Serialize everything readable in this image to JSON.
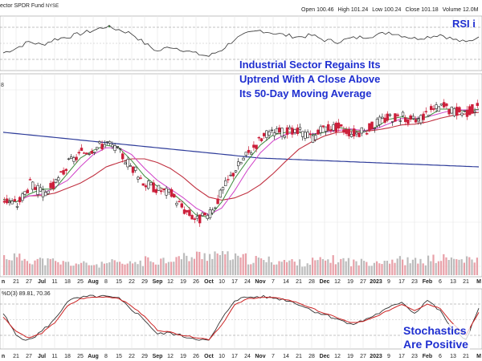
{
  "header": {
    "title": "ector SPDR Fund",
    "exchange": "NYSE",
    "ohlcv": [
      {
        "label": "Open",
        "value": "100.46"
      },
      {
        "label": "High",
        "value": "101.24"
      },
      {
        "label": "Low",
        "value": "100.24"
      },
      {
        "label": "Close",
        "value": "101.18"
      },
      {
        "label": "Volume",
        "value": "12.0M"
      }
    ]
  },
  "annotations": {
    "rsi": "RSI i",
    "main_line1": "Industrial Sector Regains Its",
    "main_line2": "Uptrend With A Close Above",
    "main_line3": "Its 50-Day Moving Average",
    "stoch_line1": "Stochastics",
    "stoch_line2": "Are Positive"
  },
  "stoch_label": "%D(3) 89.81, 70.36",
  "price_pane_label": "8",
  "date_labels": [
    "n",
    "21",
    "27",
    "Jul",
    "11",
    "18",
    "25",
    "Aug",
    "8",
    "15",
    "22",
    "29",
    "Sep",
    "12",
    "19",
    "26",
    "Oct",
    "10",
    "17",
    "24",
    "Nov",
    "7",
    "14",
    "21",
    "28",
    "Dec",
    "12",
    "19",
    "27",
    "2023",
    "9",
    "17",
    "23",
    "Feb",
    "6",
    "13",
    "21",
    "M"
  ],
  "colors": {
    "up": "#2a2a2a",
    "down": "#cc1f3a",
    "ma_fast": "#3c8a3c",
    "ma_mid": "#d040c8",
    "ma_50": "#c03040",
    "ma_200": "#2e3c9a",
    "rsi_line": "#333333",
    "rsi_over": "#4a9a4a",
    "rsi_under": "#cc3344",
    "stoch_k": "#333333",
    "stoch_d": "#cc2222",
    "annotation": "#1f2fd0"
  },
  "chart_data": [
    {
      "type": "line",
      "panel": "RSI",
      "x": [
        "Jun 14",
        "Jun 21",
        "Jun 27",
        "Jul 5",
        "Jul 11",
        "Jul 18",
        "Jul 25",
        "Aug 1",
        "Aug 8",
        "Aug 15",
        "Aug 22",
        "Aug 29",
        "Sep 6",
        "Sep 12",
        "Sep 19",
        "Sep 26",
        "Oct 3",
        "Oct 10",
        "Oct 17",
        "Oct 24",
        "Oct 31",
        "Nov 7",
        "Nov 14",
        "Nov 21",
        "Nov 28",
        "Dec 5",
        "Dec 12",
        "Dec 19",
        "Dec 27",
        "Jan 3",
        "Jan 9",
        "Jan 17",
        "Jan 23",
        "Jan 30",
        "Feb 6",
        "Feb 13",
        "Feb 21",
        "Feb 27"
      ],
      "values": [
        38,
        44,
        52,
        48,
        55,
        58,
        62,
        66,
        71,
        67,
        62,
        50,
        40,
        46,
        42,
        37,
        34,
        42,
        55,
        62,
        66,
        63,
        60,
        58,
        60,
        54,
        52,
        56,
        58,
        60,
        64,
        60,
        56,
        58,
        61,
        55,
        51,
        58
      ],
      "levels": [
        30,
        70
      ]
    },
    {
      "type": "candlestick",
      "panel": "price",
      "x": [
        "Jun 14",
        "Jun 21",
        "Jun 27",
        "Jul 5",
        "Jul 11",
        "Jul 18",
        "Jul 25",
        "Aug 1",
        "Aug 8",
        "Aug 15",
        "Aug 22",
        "Aug 29",
        "Sep 6",
        "Sep 12",
        "Sep 19",
        "Sep 26",
        "Oct 3",
        "Oct 10",
        "Oct 17",
        "Oct 24",
        "Oct 31",
        "Nov 7",
        "Nov 14",
        "Nov 21",
        "Nov 28",
        "Dec 5",
        "Dec 12",
        "Dec 19",
        "Dec 27",
        "Jan 3",
        "Jan 9",
        "Jan 17",
        "Jan 23",
        "Jan 30",
        "Feb 6",
        "Feb 13",
        "Feb 21",
        "Feb 27"
      ],
      "close": [
        82,
        81,
        85,
        83,
        85,
        89,
        91,
        92,
        93,
        91,
        88,
        85,
        84,
        83,
        80,
        78,
        79,
        84,
        88,
        91,
        94,
        95,
        95,
        95,
        94,
        96,
        96,
        95,
        95,
        97,
        98,
        98,
        97,
        99,
        100,
        99,
        99,
        100
      ],
      "moving_averages": [
        "fast",
        "mid",
        "50-day",
        "200-day"
      ]
    },
    {
      "type": "bar",
      "panel": "volume",
      "x": [
        "Jun 14",
        "Jun 21",
        "Jun 27",
        "Jul 5",
        "Jul 11",
        "Jul 18",
        "Jul 25",
        "Aug 1",
        "Aug 8",
        "Aug 15",
        "Aug 22",
        "Aug 29",
        "Sep 6",
        "Sep 12",
        "Sep 19",
        "Sep 26",
        "Oct 3",
        "Oct 10",
        "Oct 17",
        "Oct 24",
        "Oct 31",
        "Nov 7",
        "Nov 14",
        "Nov 21",
        "Nov 28",
        "Dec 5",
        "Dec 12",
        "Dec 19",
        "Dec 27",
        "Jan 3",
        "Jan 9",
        "Jan 17",
        "Jan 23",
        "Jan 30",
        "Feb 6",
        "Feb 13",
        "Feb 21",
        "Feb 27"
      ],
      "values": [
        60,
        55,
        50,
        45,
        40,
        38,
        36,
        34,
        40,
        36,
        42,
        48,
        50,
        56,
        58,
        64,
        70,
        62,
        55,
        50,
        48,
        46,
        44,
        40,
        46,
        50,
        48,
        42,
        44,
        48,
        50,
        46,
        44,
        52,
        54,
        50,
        48,
        44
      ]
    },
    {
      "type": "line",
      "panel": "stochastics",
      "x": [
        "Jun 14",
        "Jun 21",
        "Jun 27",
        "Jul 5",
        "Jul 11",
        "Jul 18",
        "Jul 25",
        "Aug 1",
        "Aug 8",
        "Aug 15",
        "Aug 22",
        "Aug 29",
        "Sep 6",
        "Sep 12",
        "Sep 19",
        "Sep 26",
        "Oct 3",
        "Oct 10",
        "Oct 17",
        "Oct 24",
        "Oct 31",
        "Nov 7",
        "Nov 14",
        "Nov 21",
        "Nov 28",
        "Dec 5",
        "Dec 12",
        "Dec 19",
        "Dec 27",
        "Jan 3",
        "Jan 9",
        "Jan 17",
        "Jan 23",
        "Jan 30",
        "Feb 6",
        "Feb 13",
        "Feb 21",
        "Feb 27"
      ],
      "series": [
        {
          "name": "%K",
          "values": [
            62,
            20,
            10,
            28,
            50,
            86,
            92,
            95,
            94,
            90,
            70,
            50,
            22,
            25,
            18,
            14,
            9,
            50,
            88,
            93,
            94,
            92,
            88,
            80,
            68,
            60,
            52,
            40,
            48,
            60,
            72,
            85,
            62,
            88,
            66,
            30,
            12,
            72
          ]
        },
        {
          "name": "%D(3)",
          "values": [
            55,
            28,
            15,
            24,
            44,
            76,
            90,
            93,
            94,
            91,
            76,
            56,
            30,
            26,
            20,
            16,
            12,
            40,
            78,
            90,
            93,
            92,
            89,
            82,
            72,
            62,
            54,
            44,
            46,
            56,
            68,
            80,
            68,
            80,
            72,
            42,
            20,
            64
          ]
        }
      ],
      "levels": [
        20,
        80
      ]
    }
  ]
}
